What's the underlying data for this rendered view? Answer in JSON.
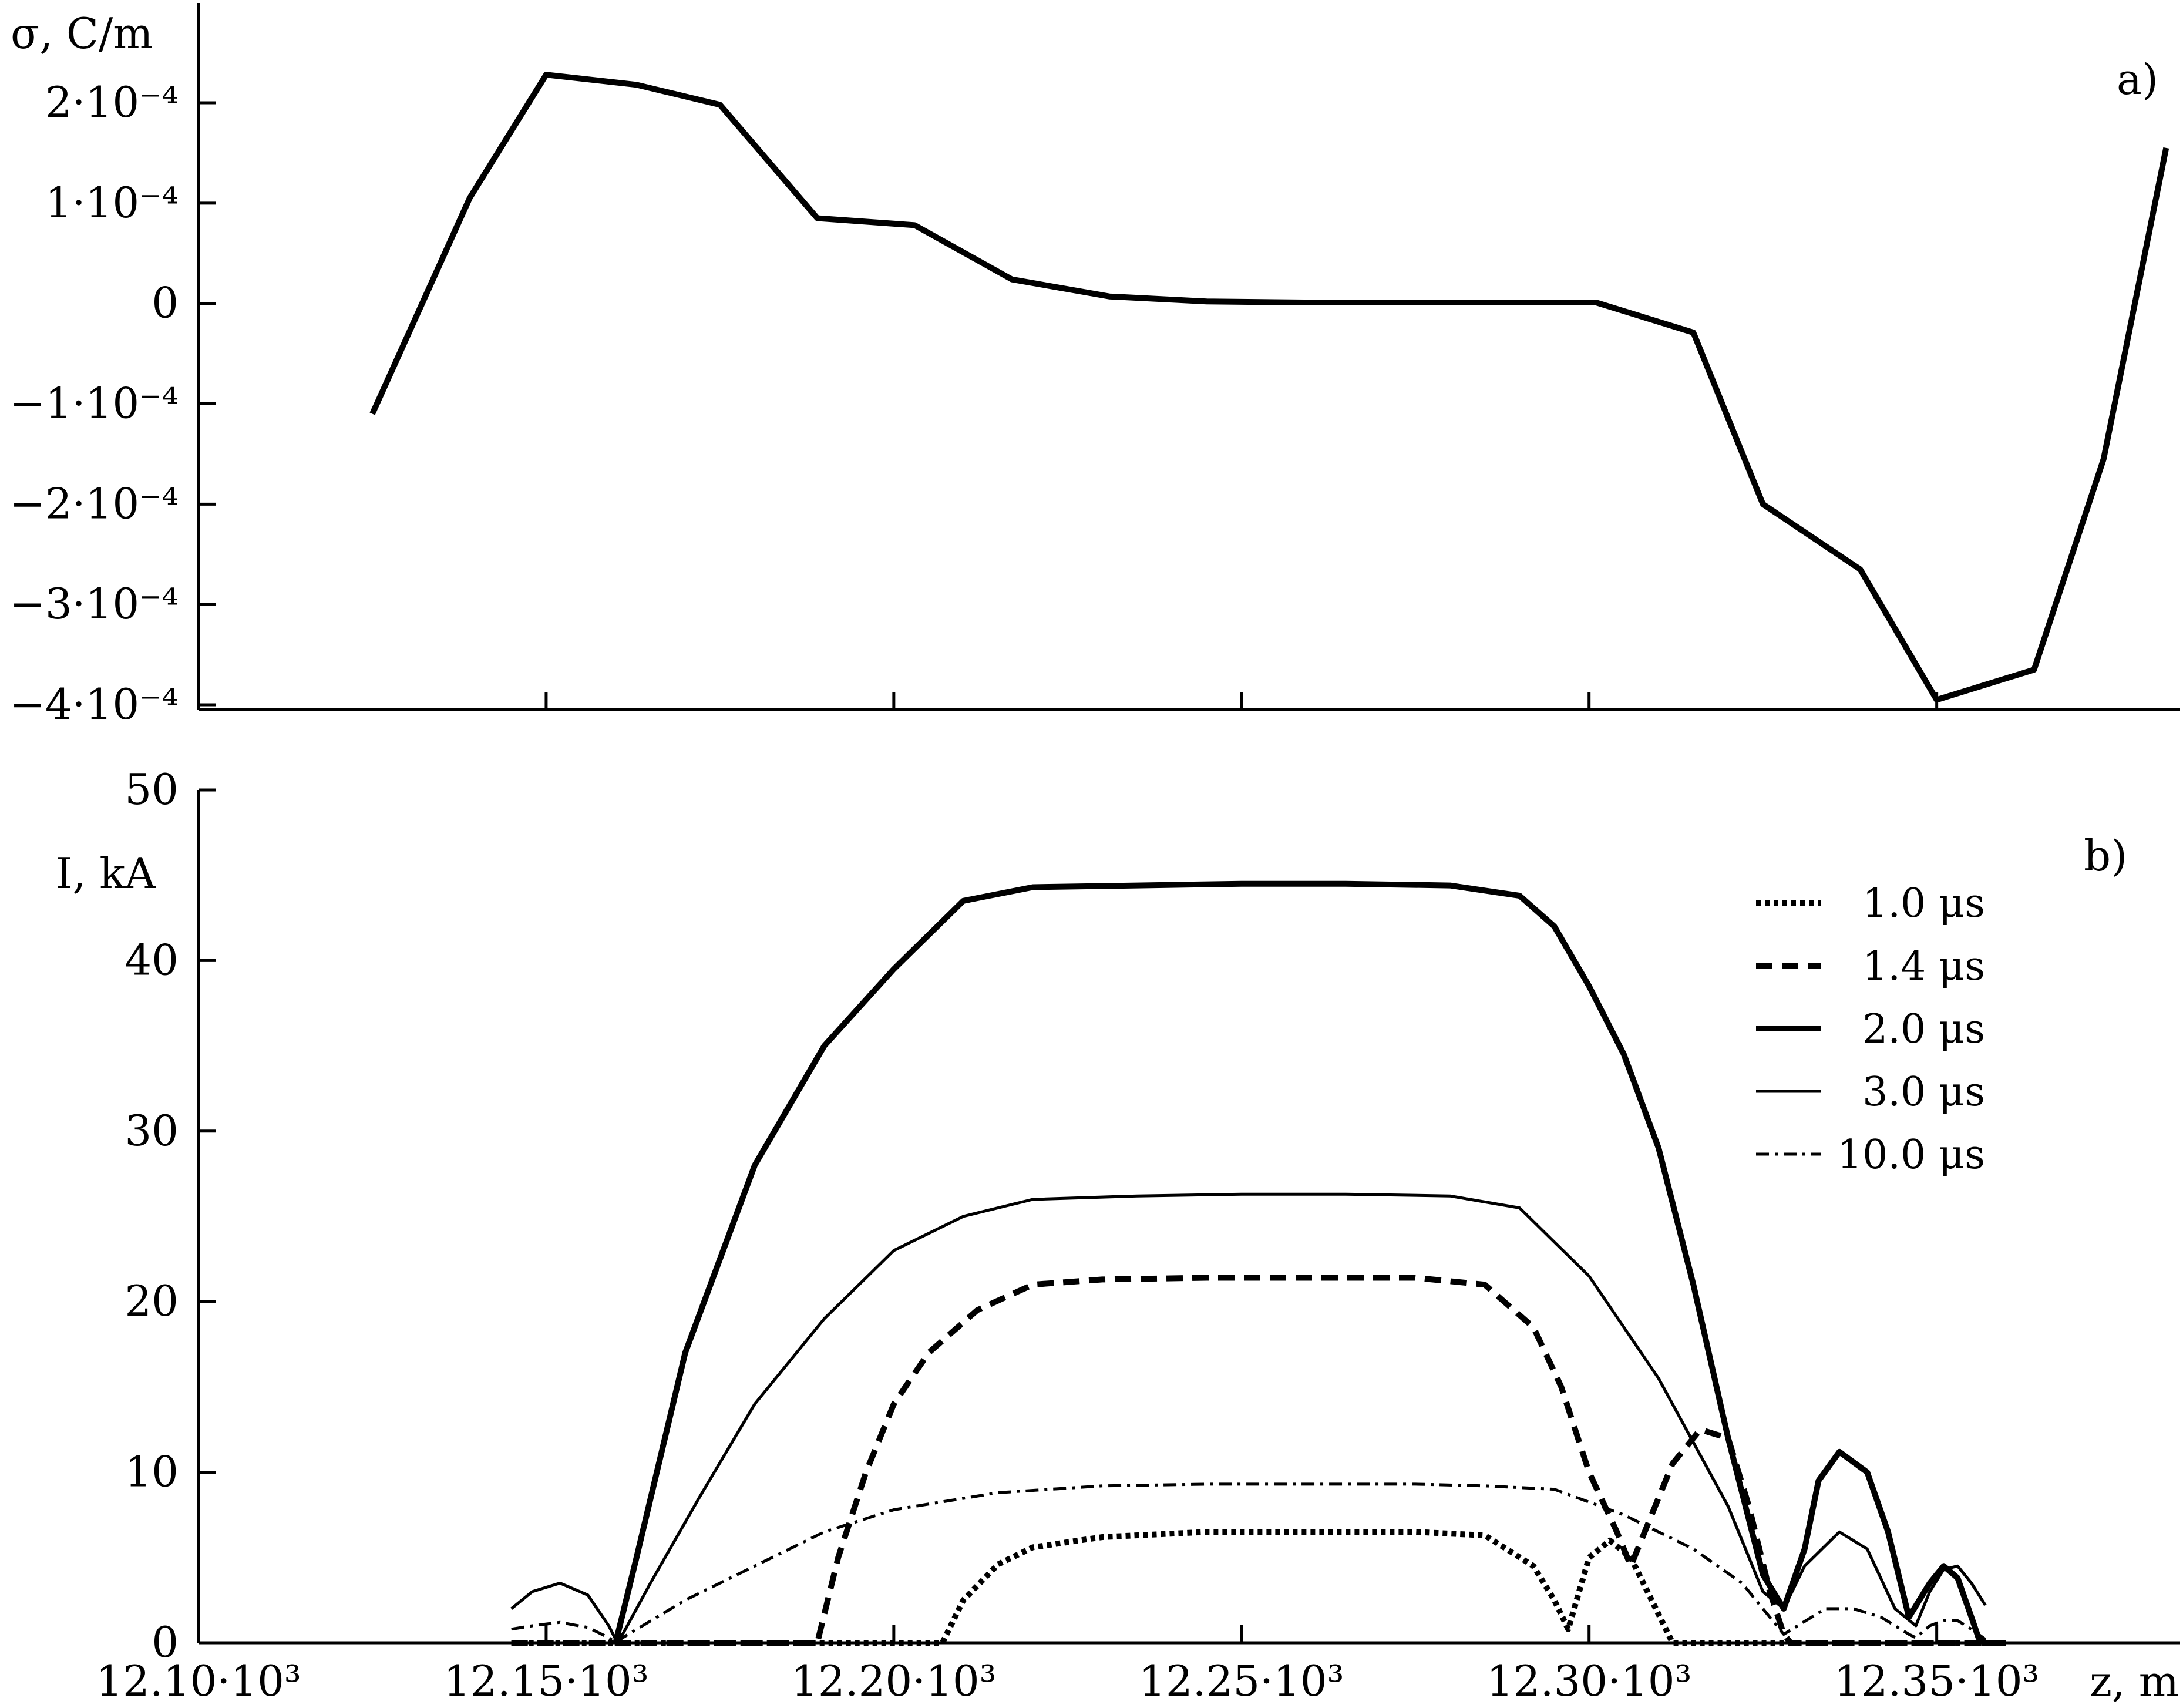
{
  "chart_data": [
    {
      "type": "line",
      "panel_label": "a)",
      "ylabel": "σ, C/m",
      "xlim": [
        12100,
        12385
      ],
      "ylim": [
        -0.0004,
        0.0002
      ],
      "grid": false,
      "y_ticks": [
        {
          "value": 0.0002,
          "label": "2·10⁻⁴"
        },
        {
          "value": 0.0001,
          "label": "1·10⁻⁴"
        },
        {
          "value": 0,
          "label": "0"
        },
        {
          "value": -0.0001,
          "label": "−1·10⁻⁴"
        },
        {
          "value": -0.0002,
          "label": "−2·10⁻⁴"
        },
        {
          "value": -0.0003,
          "label": "−3·10⁻⁴"
        },
        {
          "value": -0.0004,
          "label": "−4·10⁻⁴"
        }
      ],
      "x_ticks": [
        12150,
        12200,
        12250,
        12300,
        12350
      ],
      "series": [
        {
          "x": [
            12125,
            12139,
            12150,
            12163,
            12175,
            12189,
            12203,
            12217,
            12231,
            12245,
            12259,
            12273,
            12287,
            12301,
            12315,
            12325,
            12339,
            12350,
            12364,
            12374,
            12383
          ],
          "y": [
            -0.00011,
            0.000105,
            0.000228,
            0.000218,
            0.000198,
            8.5e-05,
            7.8e-05,
            2.4e-05,
            7e-06,
            2e-06,
            1e-06,
            1e-06,
            1e-06,
            1e-06,
            -2.9e-05,
            -0.0002,
            -0.000265,
            -0.000395,
            -0.000365,
            -0.000155,
            0.000155
          ]
        }
      ]
    },
    {
      "type": "line",
      "panel_label": "b)",
      "ylabel": "I, kA",
      "xlabel": "z, m",
      "xlim": [
        12100,
        12385
      ],
      "ylim": [
        0,
        50
      ],
      "grid": false,
      "legend_position": "top-right",
      "y_ticks": [
        {
          "value": 0,
          "label": "0"
        },
        {
          "value": 10,
          "label": "10"
        },
        {
          "value": 20,
          "label": "20"
        },
        {
          "value": 30,
          "label": "30"
        },
        {
          "value": 40,
          "label": "40"
        },
        {
          "value": 50,
          "label": "50"
        }
      ],
      "x_ticks": [
        {
          "value": 12100,
          "label": "12.10·10³"
        },
        {
          "value": 12150,
          "label": "12.15·10³"
        },
        {
          "value": 12200,
          "label": "12.20·10³"
        },
        {
          "value": 12250,
          "label": "12.25·10³"
        },
        {
          "value": 12300,
          "label": "12.30·10³"
        },
        {
          "value": 12350,
          "label": "12.35·10³"
        }
      ],
      "series": [
        {
          "name": "1.0 μs",
          "style": "dotted",
          "x": [
            12145,
            12207,
            12210,
            12215,
            12220,
            12230,
            12245,
            12260,
            12275,
            12285,
            12292,
            12295,
            12297,
            12300,
            12303,
            12306,
            12309,
            12312,
            12360
          ],
          "y": [
            0,
            0,
            2.5,
            4.6,
            5.6,
            6.2,
            6.5,
            6.5,
            6.5,
            6.3,
            4.5,
            2.5,
            0.8,
            5.0,
            6.0,
            5.0,
            2.5,
            0,
            0
          ]
        },
        {
          "name": "1.4 μs",
          "style": "dashed",
          "x": [
            12145,
            12189,
            12192,
            12196,
            12200,
            12205,
            12212,
            12220,
            12230,
            12245,
            12260,
            12275,
            12285,
            12292,
            12296,
            12300,
            12304,
            12306,
            12308,
            12312,
            12316,
            12320,
            12323,
            12326,
            12328,
            12329,
            12360
          ],
          "y": [
            0,
            0,
            5.0,
            10.0,
            14.0,
            17.0,
            19.5,
            21.0,
            21.3,
            21.4,
            21.4,
            21.4,
            21.0,
            18.5,
            15.0,
            10.0,
            6.5,
            4.5,
            6.5,
            10.5,
            12.5,
            12.0,
            8.0,
            3.0,
            0.5,
            0,
            0
          ]
        },
        {
          "name": "2.0 μs",
          "style": "thick",
          "x": [
            12160,
            12163,
            12170,
            12180,
            12190,
            12200,
            12210,
            12220,
            12235,
            12250,
            12265,
            12280,
            12290,
            12295,
            12300,
            12305,
            12310,
            12315,
            12320,
            12325,
            12328,
            12331,
            12333,
            12336,
            12340,
            12343,
            12346,
            12349,
            12351,
            12353,
            12355,
            12356,
            12357,
            12358
          ],
          "y": [
            0,
            5.0,
            17.0,
            28.0,
            35.0,
            39.5,
            43.5,
            44.3,
            44.4,
            44.5,
            44.5,
            44.4,
            43.8,
            42.0,
            38.5,
            34.5,
            29.0,
            21.0,
            12.0,
            4.0,
            2.0,
            5.5,
            9.5,
            11.2,
            10.0,
            6.5,
            1.5,
            3.5,
            4.5,
            3.8,
            1.5,
            0.3,
            0,
            0
          ]
        },
        {
          "name": "3.0 μs",
          "style": "thin",
          "x": [
            12145,
            12148,
            12152,
            12156,
            12159,
            12160,
            12161,
            12165,
            12172,
            12180,
            12190,
            12200,
            12210,
            12220,
            12235,
            12250,
            12265,
            12280,
            12290,
            12295,
            12300,
            12310,
            12320,
            12325,
            12328,
            12331,
            12336,
            12340,
            12344,
            12347,
            12349,
            12351,
            12353,
            12355,
            12357
          ],
          "y": [
            2.0,
            3.0,
            3.5,
            2.8,
            1.0,
            0.2,
            0.5,
            3.5,
            8.5,
            14.0,
            19.0,
            23.0,
            25.0,
            26.0,
            26.2,
            26.3,
            26.3,
            26.2,
            25.5,
            23.5,
            21.5,
            15.5,
            8.0,
            3.0,
            2.0,
            4.5,
            6.5,
            5.5,
            2.0,
            1.0,
            3.0,
            4.3,
            4.5,
            3.5,
            2.2
          ]
        },
        {
          "name": "10.0 μs",
          "style": "dash-dot",
          "x": [
            12145,
            12148,
            12152,
            12156,
            12159,
            12160,
            12161,
            12170,
            12180,
            12190,
            12200,
            12215,
            12230,
            12245,
            12260,
            12275,
            12285,
            12295,
            12305,
            12315,
            12322,
            12326,
            12328,
            12330,
            12334,
            12338,
            12342,
            12346,
            12347,
            12349,
            12351,
            12353,
            12355,
            12357
          ],
          "y": [
            0.8,
            1.0,
            1.2,
            0.9,
            0.3,
            0,
            0.3,
            2.5,
            4.5,
            6.5,
            7.8,
            8.8,
            9.2,
            9.3,
            9.3,
            9.3,
            9.2,
            9.0,
            7.5,
            5.5,
            3.5,
            1.5,
            0.5,
            1.0,
            2.0,
            2.0,
            1.5,
            0.5,
            0.3,
            1.0,
            1.3,
            1.3,
            0.8,
            0.2
          ]
        }
      ]
    }
  ]
}
